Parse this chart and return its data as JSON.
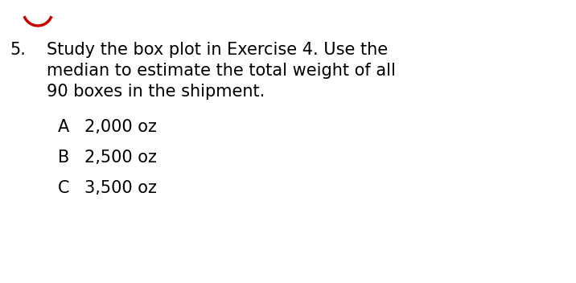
{
  "background_color": "#ffffff",
  "text_color": "#000000",
  "circle_color": "#cc0000",
  "number_text": "5.",
  "question_lines": [
    "Study the box plot in Exercise 4. Use the",
    "median to estimate the total weight of all",
    "90 boxes in the shipment."
  ],
  "options": [
    {
      "label": "A",
      "text": "2,000 oz"
    },
    {
      "label": "B",
      "text": "2,500 oz"
    },
    {
      "label": "C",
      "text": "3,500 oz"
    }
  ],
  "font_size": 15,
  "font_family": "DejaVu Sans",
  "font_weight": "normal"
}
